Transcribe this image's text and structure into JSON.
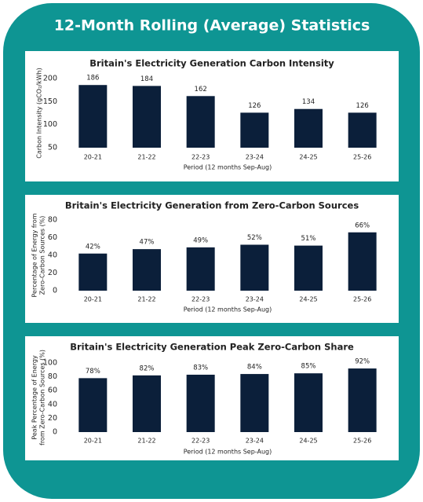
{
  "title": "12-Month Rolling (Average) Statistics",
  "chart_data": [
    {
      "type": "bar",
      "title": "Britain's Electricity Generation Carbon Intensity",
      "categories": [
        "20-21",
        "21-22",
        "22-23",
        "23-24",
        "24-25",
        "25-26"
      ],
      "values": [
        186,
        184,
        162,
        126,
        134,
        126
      ],
      "color": "#0b1f3a",
      "ylim": [
        50,
        200
      ],
      "yticks": [
        50,
        100,
        150,
        200
      ],
      "x_label": "Period (12 months Sep-Aug)",
      "y_label": [
        "Carbon Intensity (gCO₂/kWh)"
      ]
    },
    {
      "type": "bar",
      "title": "Britain's Electricity Generation from Zero-Carbon Sources",
      "categories": [
        "20-21",
        "21-22",
        "22-23",
        "23-24",
        "24-25",
        "25-26"
      ],
      "values": [
        42,
        47,
        49,
        52,
        51,
        66
      ],
      "value_labels": [
        "42%",
        "47%",
        "49%",
        "52%",
        "51%",
        "66%"
      ],
      "color": "#0b1f3a",
      "ylim": [
        0,
        80
      ],
      "yticks": [
        0,
        20,
        40,
        60,
        80
      ],
      "x_label": "Period (12 months Sep-Aug)",
      "y_label": [
        "Percentage of Energy from",
        "Zero-Carbon Sources (%)"
      ]
    },
    {
      "type": "bar",
      "title": "Britain's Electricity Generation Peak Zero-Carbon Share",
      "categories": [
        "20-21",
        "21-22",
        "22-23",
        "23-24",
        "24-25",
        "25-26"
      ],
      "values": [
        78,
        82,
        83,
        84,
        85,
        92
      ],
      "value_labels": [
        "78%",
        "82%",
        "83%",
        "84%",
        "85%",
        "92%"
      ],
      "color": "#0b1f3a",
      "ylim": [
        0,
        100
      ],
      "yticks": [
        0,
        20,
        40,
        60,
        80,
        100
      ],
      "x_label": "Period (12 months Sep-Aug)",
      "y_label": [
        "Peak Percentage of Energy",
        "from Zero-Carbon Sources (%)"
      ]
    }
  ]
}
